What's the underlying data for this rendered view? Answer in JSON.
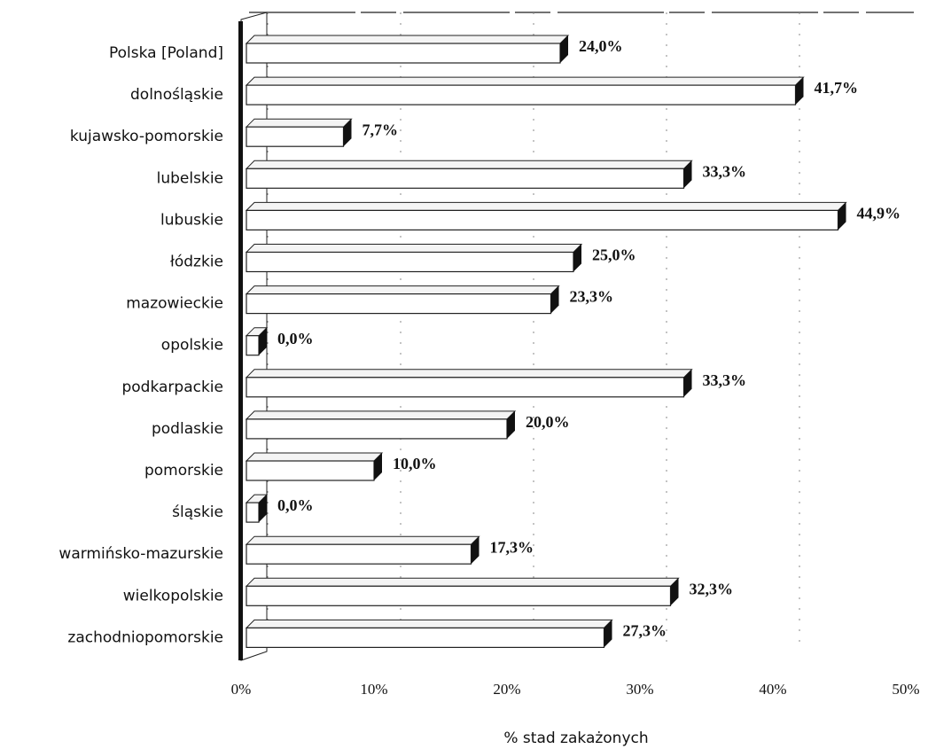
{
  "chart_data": {
    "type": "bar",
    "orientation": "horizontal",
    "categories": [
      "Polska [Poland]",
      "dolnośląskie",
      "kujawsko-pomorskie",
      "lubelskie",
      "lubuskie",
      "łódzkie",
      "mazowieckie",
      "opolskie",
      "podkarpackie",
      "podlaskie",
      "pomorskie",
      "śląskie",
      "warmińsko-mazurskie",
      "wielkopolskie",
      "zachodniopomorskie"
    ],
    "values": [
      24.0,
      41.7,
      7.7,
      33.3,
      44.9,
      25.0,
      23.3,
      0.0,
      33.3,
      20.0,
      10.0,
      0.0,
      17.3,
      32.3,
      27.3
    ],
    "value_labels": [
      "24,0%",
      "41,7%",
      "7,7%",
      "33,3%",
      "44,9%",
      "25,0%",
      "23,3%",
      "0,0%",
      "33,3%",
      "20,0%",
      "10,0%",
      "0,0%",
      "17,3%",
      "32,3%",
      "27,3%"
    ],
    "color": "#ffffff",
    "xlim": [
      0,
      50
    ],
    "xticks": [
      {
        "value": 0,
        "label": "0%"
      },
      {
        "value": 10,
        "label": "10%"
      },
      {
        "value": 20,
        "label": "20%"
      },
      {
        "value": 30,
        "label": "30%"
      },
      {
        "value": 40,
        "label": "40%"
      },
      {
        "value": 50,
        "label": "50%"
      }
    ],
    "xlabel": "% stad zakażonych"
  }
}
